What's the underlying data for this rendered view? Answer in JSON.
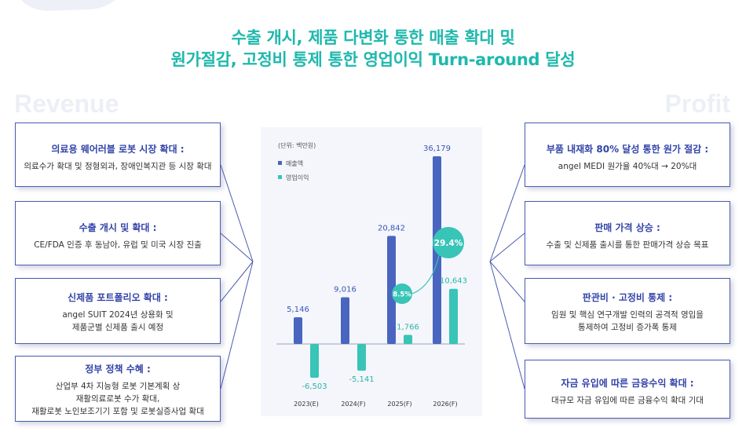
{
  "headline": {
    "line1": "수출 개시, 제품 다변화 통한 매출 확대 및",
    "line2": "원가절감, 고정비 통제 통한 영업이익 Turn-around 달성"
  },
  "watermarks": {
    "left": "Revenue",
    "right": "Profit"
  },
  "revenue_cards": [
    {
      "title": "의료용 웨어러블 로봇 시장 확대 :",
      "lines": [
        "의료수가 확대 및 정형외과, 장애인복지관 등 시장 확대"
      ]
    },
    {
      "title": "수출 개시 및 확대 :",
      "lines": [
        "CE/FDA 인증 후 동남아, 유럽 및 미국 시장 진출"
      ]
    },
    {
      "title": "신제품 포트폴리오 확대 :",
      "lines": [
        "angel SUIT 2024년 상용화 및",
        "제품군별 신제품 출시 예정"
      ]
    },
    {
      "title": "정부 정책 수혜 :",
      "lines": [
        "산업부 4차 지능형 로봇 기본계획 상",
        "재활의료로봇 수가 확대,",
        "재활로봇 노인보조기기 포함 및 로봇실증사업 확대"
      ]
    }
  ],
  "profit_cards": [
    {
      "title": "부품 내재화 80% 달성 통한 원가 절감 :",
      "lines": [
        "angel MEDI 원가율 40%대 → 20%대"
      ]
    },
    {
      "title": "판매 가격 상승 :",
      "lines": [
        "수출 및 신제품 출시를 통한 판매가격 상승 목표"
      ]
    },
    {
      "title": "판관비 · 고정비 통제 :",
      "lines": [
        "임원 및 핵심 연구개발 인력의 공격적 영입을",
        "통제하여 고정비 증가폭 통제"
      ]
    },
    {
      "title": "자금 유입에 따른 금융수익 확대 :",
      "lines": [
        "대규모 자금 유입에 따른 금융수익 확대 기대"
      ]
    }
  ],
  "chart_data": {
    "type": "bar",
    "unit_label": "(단위: 백만원)",
    "categories": [
      "2023(E)",
      "2024(F)",
      "2025(F)",
      "2026(F)"
    ],
    "series": [
      {
        "name": "매출액",
        "color": "#4a65c0",
        "values": [
          5146,
          9016,
          20842,
          36179
        ],
        "labels": [
          "5,146",
          "9,016",
          "20,842",
          "36,179"
        ]
      },
      {
        "name": "영업이익",
        "color": "#38c4b7",
        "values": [
          -6503,
          -5141,
          1766,
          10643
        ],
        "labels": [
          "-6,503",
          "-5,141",
          "1,766",
          "10,643"
        ]
      }
    ],
    "margin_badges": [
      {
        "category": "2025(F)",
        "label": "8.5%"
      },
      {
        "category": "2026(F)",
        "label": "29.4%"
      }
    ],
    "legend": "top-left"
  },
  "colors": {
    "headline": "#1fb8ad",
    "card_border": "#4a5bb0",
    "card_title": "#3344a8",
    "revenue_bar": "#4a65c0",
    "profit_bar": "#38c4b7",
    "panel_bg": "#f4f6fb"
  }
}
